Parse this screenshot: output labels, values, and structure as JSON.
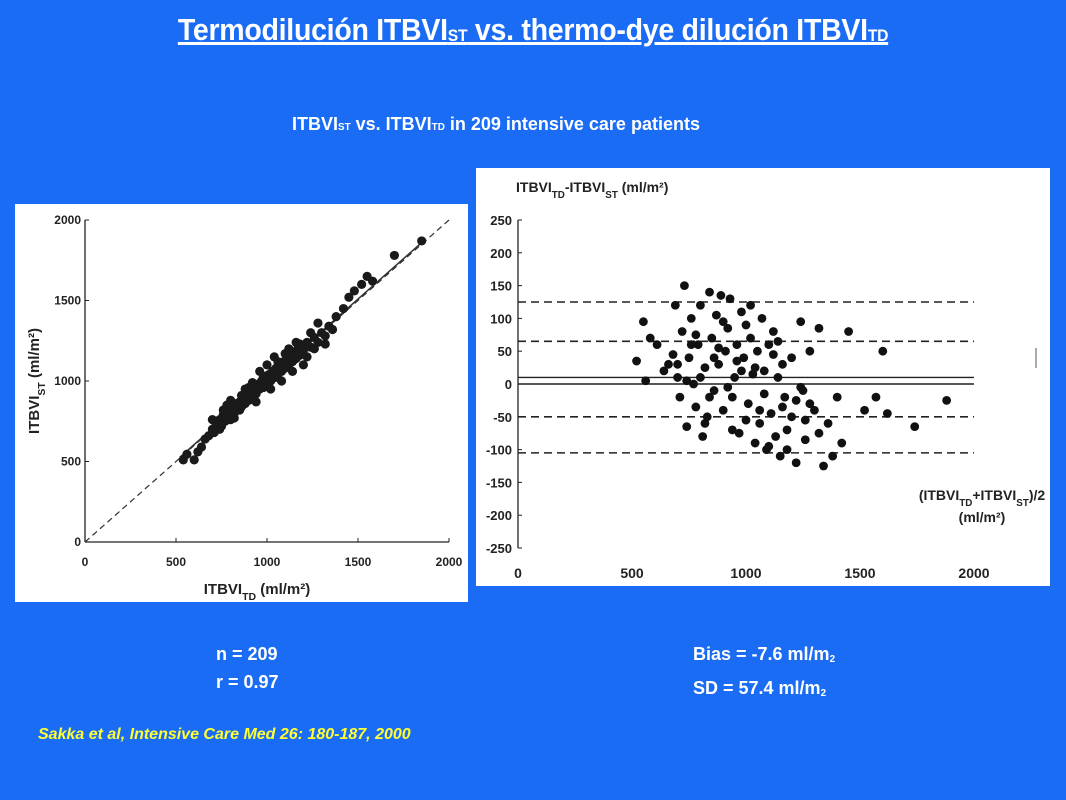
{
  "header": {
    "title_part1": "Termodilución ITBVI",
    "title_sub1": "ST",
    "title_part2": " vs. thermo-dye dilución ITBVI",
    "title_sub2": "TD",
    "subtitle_part1": "ITBVI",
    "subtitle_sub1": "ST",
    "subtitle_part2": " vs. ITBVI",
    "subtitle_sub2": "TD",
    "subtitle_part3": " in 209 intensive care patients"
  },
  "stats_left": {
    "n": "n = 209",
    "r": "r = 0.97"
  },
  "stats_right": {
    "bias": "Bias = -7.6 ml/m",
    "bias_sub": "2",
    "sd": "SD = 57.4 ml/m",
    "sd_sub": "2"
  },
  "citation": {
    "text": "Sakka et al, Intensive Care Med 26: 180-187, 2000"
  },
  "chart_data": [
    {
      "type": "scatter",
      "xlabel": "ITBVI_TD (ml/m²)",
      "ylabel": "ITBVI_ST (ml/m²)",
      "xlim": [
        0,
        2000
      ],
      "ylim": [
        0,
        2000
      ],
      "xticks": [
        0,
        500,
        1000,
        1500,
        2000
      ],
      "yticks": [
        0,
        500,
        1000,
        1500,
        2000
      ],
      "grid": false,
      "lines": [
        {
          "kind": "identity",
          "style": "dashed",
          "x": [
            0,
            2000
          ],
          "y": [
            0,
            2000
          ]
        },
        {
          "kind": "regression",
          "style": "solid",
          "x": [
            520,
            1850
          ],
          "y": [
            525,
            1860
          ]
        }
      ],
      "points": [
        [
          540,
          510
        ],
        [
          560,
          545
        ],
        [
          600,
          510
        ],
        [
          620,
          560
        ],
        [
          640,
          590
        ],
        [
          660,
          640
        ],
        [
          680,
          660
        ],
        [
          700,
          700
        ],
        [
          710,
          680
        ],
        [
          720,
          730
        ],
        [
          740,
          760
        ],
        [
          750,
          720
        ],
        [
          760,
          790
        ],
        [
          770,
          750
        ],
        [
          780,
          810
        ],
        [
          790,
          780
        ],
        [
          800,
          760
        ],
        [
          810,
          840
        ],
        [
          820,
          800
        ],
        [
          830,
          860
        ],
        [
          840,
          830
        ],
        [
          850,
          870
        ],
        [
          860,
          840
        ],
        [
          870,
          900
        ],
        [
          880,
          860
        ],
        [
          890,
          920
        ],
        [
          900,
          880
        ],
        [
          910,
          940
        ],
        [
          920,
          900
        ],
        [
          930,
          960
        ],
        [
          940,
          920
        ],
        [
          950,
          980
        ],
        [
          960,
          950
        ],
        [
          970,
          1000
        ],
        [
          980,
          960
        ],
        [
          990,
          1020
        ],
        [
          1000,
          980
        ],
        [
          1010,
          1040
        ],
        [
          1020,
          1000
        ],
        [
          1030,
          1060
        ],
        [
          1040,
          1020
        ],
        [
          1050,
          1080
        ],
        [
          1060,
          1040
        ],
        [
          1070,
          1100
        ],
        [
          1080,
          1060
        ],
        [
          1090,
          1120
        ],
        [
          1100,
          1080
        ],
        [
          1110,
          1140
        ],
        [
          1120,
          1100
        ],
        [
          1130,
          1160
        ],
        [
          1140,
          1120
        ],
        [
          1150,
          1180
        ],
        [
          1160,
          1140
        ],
        [
          1170,
          1200
        ],
        [
          1180,
          1160
        ],
        [
          1190,
          1220
        ],
        [
          1200,
          1190
        ],
        [
          1220,
          1240
        ],
        [
          1240,
          1210
        ],
        [
          1260,
          1270
        ],
        [
          1280,
          1240
        ],
        [
          1300,
          1300
        ],
        [
          1320,
          1280
        ],
        [
          1340,
          1340
        ],
        [
          1360,
          1320
        ],
        [
          1380,
          1400
        ],
        [
          1420,
          1450
        ],
        [
          1450,
          1520
        ],
        [
          1480,
          1560
        ],
        [
          1520,
          1600
        ],
        [
          1550,
          1650
        ],
        [
          1580,
          1620
        ],
        [
          1700,
          1780
        ],
        [
          1850,
          1870
        ],
        [
          760,
          820
        ],
        [
          800,
          880
        ],
        [
          850,
          820
        ],
        [
          880,
          950
        ],
        [
          920,
          990
        ],
        [
          960,
          1060
        ],
        [
          1000,
          1100
        ],
        [
          1040,
          1150
        ],
        [
          1080,
          1000
        ],
        [
          1120,
          1200
        ],
        [
          1160,
          1240
        ],
        [
          1200,
          1100
        ],
        [
          1240,
          1300
        ],
        [
          1280,
          1360
        ],
        [
          1320,
          1230
        ],
        [
          700,
          760
        ],
        [
          740,
          700
        ],
        [
          780,
          850
        ],
        [
          820,
          770
        ],
        [
          860,
          910
        ],
        [
          900,
          960
        ],
        [
          940,
          870
        ],
        [
          980,
          1030
        ],
        [
          1020,
          950
        ],
        [
          1060,
          1120
        ],
        [
          1100,
          1170
        ],
        [
          1140,
          1060
        ],
        [
          1180,
          1230
        ],
        [
          1220,
          1150
        ],
        [
          1260,
          1200
        ]
      ]
    },
    {
      "type": "scatter",
      "title": "ITBVI_TD-ITBVI_ST (ml/m²)",
      "xlabel": "(ITBVI_TD+ITBVI_ST)/2 (ml/m²)",
      "xlim": [
        0,
        2000
      ],
      "ylim": [
        -250,
        250
      ],
      "xticks": [
        0,
        500,
        1000,
        1500,
        2000
      ],
      "yticks": [
        250,
        200,
        150,
        100,
        50,
        0,
        -50,
        -100,
        -150,
        -200,
        -250
      ],
      "grid": false,
      "hlines": [
        {
          "y": 125,
          "style": "dashed"
        },
        {
          "y": 65,
          "style": "dashed"
        },
        {
          "y": 10,
          "style": "solid"
        },
        {
          "y": 0,
          "style": "solid"
        },
        {
          "y": -50,
          "style": "dashed"
        },
        {
          "y": -105,
          "style": "dashed"
        }
      ],
      "points": [
        [
          520,
          35
        ],
        [
          550,
          95
        ],
        [
          560,
          5
        ],
        [
          580,
          70
        ],
        [
          610,
          60
        ],
        [
          640,
          20
        ],
        [
          660,
          30
        ],
        [
          680,
          45
        ],
        [
          690,
          120
        ],
        [
          700,
          10
        ],
        [
          710,
          -20
        ],
        [
          720,
          80
        ],
        [
          730,
          150
        ],
        [
          740,
          -65
        ],
        [
          750,
          40
        ],
        [
          760,
          100
        ],
        [
          770,
          0
        ],
        [
          780,
          -35
        ],
        [
          790,
          60
        ],
        [
          800,
          120
        ],
        [
          810,
          -80
        ],
        [
          820,
          25
        ],
        [
          830,
          -50
        ],
        [
          840,
          140
        ],
        [
          850,
          70
        ],
        [
          860,
          -10
        ],
        [
          870,
          105
        ],
        [
          880,
          30
        ],
        [
          890,
          135
        ],
        [
          900,
          -40
        ],
        [
          910,
          50
        ],
        [
          920,
          85
        ],
        [
          930,
          130
        ],
        [
          940,
          -20
        ],
        [
          950,
          10
        ],
        [
          960,
          60
        ],
        [
          970,
          -75
        ],
        [
          980,
          110
        ],
        [
          990,
          40
        ],
        [
          1000,
          90
        ],
        [
          1010,
          -30
        ],
        [
          1020,
          70
        ],
        [
          1030,
          15
        ],
        [
          1040,
          -90
        ],
        [
          1050,
          50
        ],
        [
          1060,
          -60
        ],
        [
          1070,
          100
        ],
        [
          1080,
          20
        ],
        [
          1090,
          -100
        ],
        [
          1100,
          60
        ],
        [
          1110,
          -45
        ],
        [
          1120,
          80
        ],
        [
          1130,
          -80
        ],
        [
          1140,
          10
        ],
        [
          1150,
          -110
        ],
        [
          1160,
          30
        ],
        [
          1170,
          -20
        ],
        [
          1180,
          -70
        ],
        [
          1200,
          40
        ],
        [
          1220,
          -120
        ],
        [
          1240,
          95
        ],
        [
          1250,
          -10
        ],
        [
          1260,
          -85
        ],
        [
          1280,
          50
        ],
        [
          1300,
          -40
        ],
        [
          1320,
          85
        ],
        [
          1340,
          -125
        ],
        [
          1360,
          -60
        ],
        [
          1380,
          -110
        ],
        [
          1400,
          -20
        ],
        [
          1420,
          -90
        ],
        [
          1450,
          80
        ],
        [
          1520,
          -40
        ],
        [
          1570,
          -20
        ],
        [
          1600,
          50
        ],
        [
          1620,
          -45
        ],
        [
          1740,
          -65
        ],
        [
          1880,
          -25
        ],
        [
          760,
          60
        ],
        [
          800,
          10
        ],
        [
          840,
          -20
        ],
        [
          880,
          55
        ],
        [
          920,
          -5
        ],
        [
          960,
          35
        ],
        [
          1000,
          -55
        ],
        [
          1040,
          25
        ],
        [
          1080,
          -15
        ],
        [
          1120,
          45
        ],
        [
          1160,
          -35
        ],
        [
          1200,
          -50
        ],
        [
          1240,
          -5
        ],
        [
          1280,
          -30
        ],
        [
          1320,
          -75
        ],
        [
          700,
          30
        ],
        [
          740,
          5
        ],
        [
          780,
          75
        ],
        [
          820,
          -60
        ],
        [
          860,
          40
        ],
        [
          900,
          95
        ],
        [
          940,
          -70
        ],
        [
          980,
          20
        ],
        [
          1020,
          120
        ],
        [
          1060,
          -40
        ],
        [
          1100,
          -95
        ],
        [
          1140,
          65
        ],
        [
          1180,
          -100
        ],
        [
          1220,
          -25
        ],
        [
          1260,
          -55
        ]
      ]
    }
  ]
}
